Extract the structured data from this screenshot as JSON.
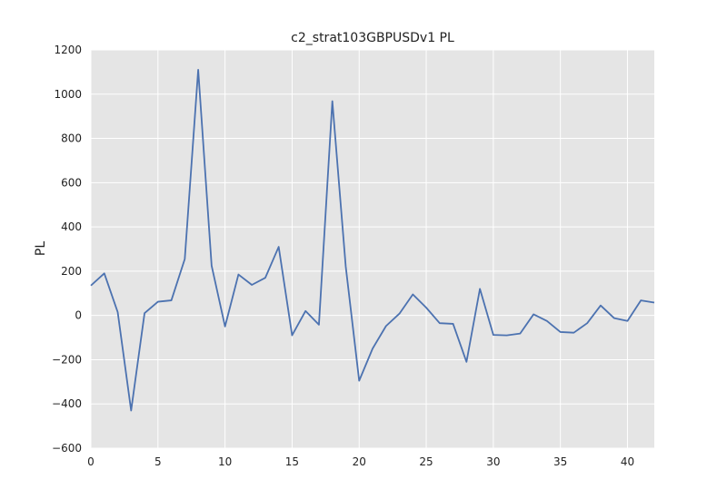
{
  "chart_data": {
    "type": "line",
    "title": "c2_strat103GBPUSDv1 PL",
    "xlabel": "",
    "ylabel": "PL",
    "xlim": [
      0,
      42
    ],
    "ylim": [
      -600,
      1200
    ],
    "xticks": [
      0,
      5,
      10,
      15,
      20,
      25,
      30,
      35,
      40
    ],
    "xtick_labels": [
      "0",
      "5",
      "10",
      "15",
      "20",
      "25",
      "30",
      "35",
      "40"
    ],
    "yticks": [
      -600,
      -400,
      -200,
      0,
      200,
      400,
      600,
      800,
      1000,
      1200
    ],
    "ytick_labels": [
      "−600",
      "−400",
      "−200",
      "0",
      "200",
      "400",
      "600",
      "800",
      "1000",
      "1200"
    ],
    "grid": true,
    "background": "#e5e5e5",
    "grid_color": "#ffffff",
    "line_color": "#4c72b0",
    "series": [
      {
        "x": [
          0,
          1,
          2,
          3,
          4,
          5,
          6,
          7,
          8,
          9,
          10,
          11,
          12,
          13,
          14,
          15,
          16,
          17,
          18,
          19,
          20,
          21,
          22,
          23,
          24,
          25,
          26,
          27,
          28,
          29,
          30,
          31,
          32,
          33,
          34,
          35,
          36,
          37,
          38,
          39,
          40,
          41,
          42
        ],
        "values": [
          135,
          190,
          15,
          -430,
          10,
          62,
          68,
          255,
          1110,
          225,
          -50,
          185,
          138,
          170,
          310,
          -90,
          20,
          -42,
          968,
          220,
          -295,
          -150,
          -48,
          8,
          95,
          35,
          -35,
          -38,
          -210,
          120,
          -88,
          -90,
          -82,
          5,
          -25,
          -75,
          -78,
          -35,
          45,
          -12,
          -25,
          68,
          58
        ]
      }
    ]
  }
}
